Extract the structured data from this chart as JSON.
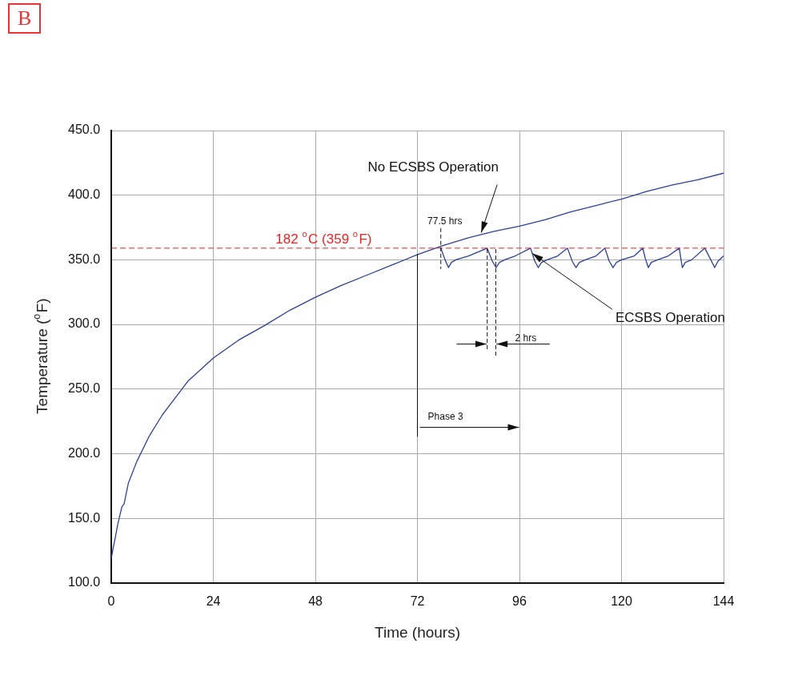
{
  "chart_data": {
    "type": "line",
    "xlabel": "Time (hours)",
    "ylabel": "Temperature ($^{o}$F)",
    "xlim": [
      0,
      144
    ],
    "xticks": [
      0,
      24,
      48,
      72,
      96,
      120,
      144
    ],
    "ylim": [
      100,
      450
    ],
    "yticks": [
      {
        "value": 100,
        "label": "100.0"
      },
      {
        "value": 150,
        "label": "150.0"
      },
      {
        "value": 200,
        "label": "200.0"
      },
      {
        "value": 250,
        "label": "250.0"
      },
      {
        "value": 300,
        "label": "300.0"
      },
      {
        "value": 350,
        "label": "350.0"
      },
      {
        "value": 400,
        "label": "400.0"
      },
      {
        "value": 450,
        "label": "450.0"
      }
    ],
    "grid": true,
    "legend": false,
    "marker": "none",
    "line_style": "solid",
    "series": [
      {
        "color": "#2a3f9e",
        "x": [
          0,
          0.5,
          1,
          1.5,
          2,
          2.5,
          3,
          4,
          6,
          9,
          12,
          18,
          24,
          30,
          36,
          42,
          48,
          54,
          60,
          66,
          72,
          78,
          84,
          90,
          96,
          102,
          108,
          114,
          120,
          126,
          132,
          138,
          144
        ],
        "values": [
          119,
          128,
          136,
          145,
          152,
          159,
          161,
          177,
          194,
          214,
          230,
          256,
          274,
          288,
          299,
          311,
          321,
          330,
          338,
          346,
          354,
          361,
          367,
          372,
          376,
          381,
          387,
          392,
          397,
          403,
          408,
          412,
          417
        ]
      },
      {
        "color": "#2a3f9e",
        "x": [
          77.5,
          78.5,
          79.3,
          80,
          81,
          84,
          88.4,
          89.6,
          90.5,
          91.3,
          92.5,
          95,
          98.6,
          99.6,
          100.4,
          101.2,
          102.5,
          105,
          107.3,
          108.4,
          109.3,
          110.1,
          111.5,
          114,
          116.1,
          117.1,
          118,
          118.8,
          120,
          123,
          125,
          125.6,
          126.3,
          127,
          128.5,
          131,
          133.6,
          133.9,
          134.3,
          135,
          136.5,
          139.6,
          141,
          141.9,
          142.7,
          144
        ],
        "values": [
          359,
          350,
          344,
          348,
          350,
          353,
          359,
          349,
          344,
          348,
          350,
          353,
          359,
          349,
          344,
          348,
          350,
          353,
          359,
          349,
          344,
          348,
          350,
          353,
          359,
          349,
          344,
          348,
          350,
          353,
          359,
          351,
          344,
          348,
          350,
          353,
          359,
          352,
          344,
          348,
          350,
          359,
          350,
          344,
          349,
          353
        ]
      }
    ],
    "ref_lines": [
      {
        "axis": "y",
        "value": 359,
        "label": "182 $^{o}$C (359 $^{o}$F)",
        "color": "#ee2222",
        "line_style": "dashed"
      }
    ],
    "annotations": [
      {
        "text": "No ECSBS Operation",
        "x": 87,
        "y": 371
      },
      {
        "text": "ECSBS Operation",
        "x": 99,
        "y": 355
      },
      {
        "text": "77.5 hrs",
        "x": 77.5,
        "y": 359
      },
      "2 hrs",
      "Phase 3",
      "B"
    ]
  }
}
